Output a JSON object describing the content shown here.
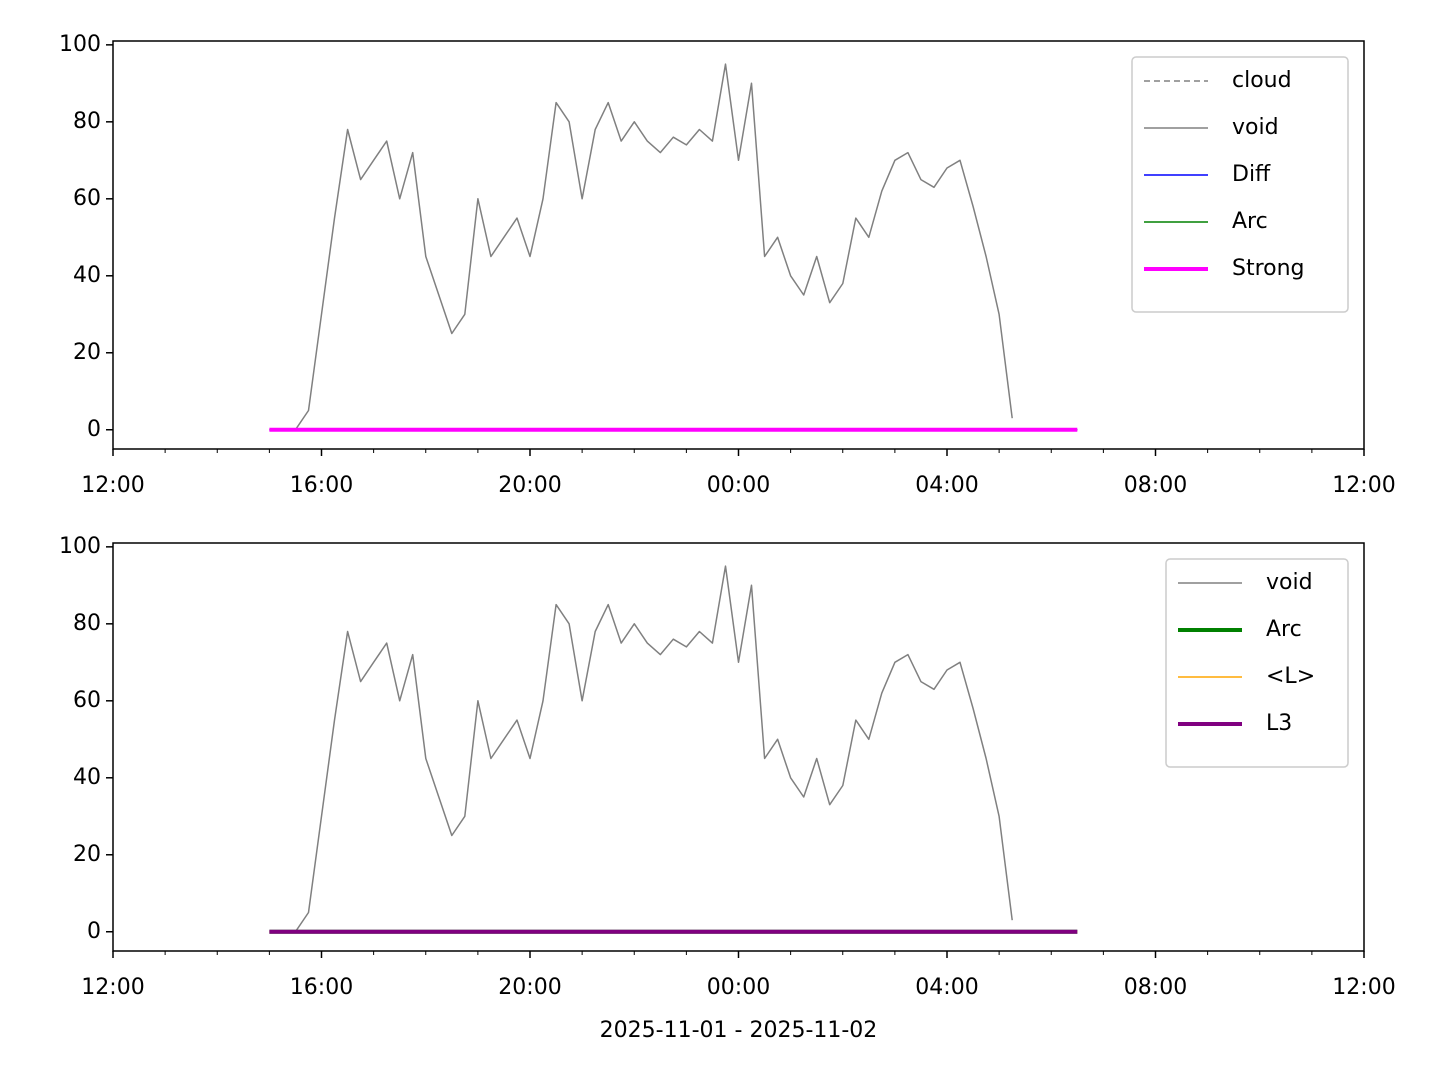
{
  "chart_data": [
    {
      "type": "line",
      "legend": "upper right",
      "x": [
        "15:00",
        "15:15",
        "15:30",
        "15:45",
        "16:00",
        "16:15",
        "16:30",
        "16:45",
        "17:00",
        "17:15",
        "17:30",
        "17:45",
        "18:00",
        "18:15",
        "18:30",
        "18:45",
        "19:00",
        "19:15",
        "19:30",
        "19:45",
        "20:00",
        "20:15",
        "20:30",
        "20:45",
        "21:00",
        "21:15",
        "21:30",
        "21:45",
        "22:00",
        "22:15",
        "22:30",
        "22:45",
        "23:00",
        "23:15",
        "23:30",
        "23:45",
        "00:00",
        "00:15",
        "00:30",
        "00:45",
        "01:00",
        "01:15",
        "01:30",
        "01:45",
        "02:00",
        "02:15",
        "02:30",
        "02:45",
        "03:00",
        "03:15",
        "03:30",
        "03:45",
        "04:00",
        "04:15",
        "04:30",
        "04:45",
        "05:00",
        "05:15",
        "05:30",
        "05:45",
        "06:00",
        "06:15",
        "06:30"
      ],
      "xlim": [
        "12:00",
        "12:00"
      ],
      "xticks": [
        "12:00",
        "16:00",
        "20:00",
        "00:00",
        "04:00",
        "08:00",
        "12:00"
      ],
      "ylim": [
        -5,
        101
      ],
      "yticks": [
        0,
        20,
        40,
        60,
        80,
        100
      ],
      "series": [
        {
          "name": "cloud",
          "color": "#808080",
          "dashed": true,
          "width": 1.5,
          "values": [
            null,
            null,
            null,
            null,
            null,
            null,
            null,
            null,
            null,
            null,
            null,
            null,
            null,
            null,
            null,
            null,
            null,
            null,
            null,
            null,
            null,
            null,
            null,
            null,
            null,
            null,
            null,
            null,
            null,
            null,
            null,
            null,
            null,
            null,
            null,
            null,
            null,
            null,
            null,
            null,
            null,
            null,
            null,
            null,
            null,
            null,
            null,
            null,
            null,
            null,
            null,
            null,
            null,
            null,
            null,
            null,
            null,
            null,
            null,
            null,
            null,
            null,
            null
          ]
        },
        {
          "name": "void",
          "color": "#808080",
          "width": 1.5,
          "values": [
            null,
            null,
            0,
            5,
            30,
            55,
            78,
            65,
            70,
            75,
            60,
            72,
            45,
            35,
            25,
            30,
            60,
            45,
            50,
            55,
            45,
            60,
            85,
            80,
            60,
            78,
            85,
            75,
            80,
            75,
            72,
            76,
            74,
            78,
            75,
            95,
            70,
            90,
            45,
            50,
            40,
            35,
            45,
            33,
            38,
            55,
            50,
            62,
            70,
            72,
            65,
            63,
            68,
            70,
            58,
            45,
            30,
            3,
            null,
            null,
            null,
            null,
            null
          ]
        },
        {
          "name": "Diff",
          "color": "#0000ff",
          "width": 1.5,
          "values": [
            0,
            0,
            0,
            0,
            0,
            0,
            0,
            0,
            0,
            0,
            0,
            0,
            0,
            0,
            0,
            0,
            0,
            0,
            0,
            0,
            0,
            0,
            0,
            0,
            0,
            0,
            0,
            0,
            0,
            0,
            0,
            0,
            0,
            0,
            0,
            0,
            0,
            0,
            0,
            0,
            0,
            0,
            0,
            0,
            0,
            0,
            0,
            0,
            0,
            0,
            0,
            0,
            0,
            0,
            0,
            0,
            0,
            0,
            0,
            0,
            0,
            0,
            0
          ]
        },
        {
          "name": "Arc",
          "color": "#008000",
          "width": 1.5,
          "values": [
            0,
            0,
            0,
            0,
            0,
            0,
            0,
            0,
            0,
            0,
            0,
            0,
            0,
            0,
            0,
            0,
            0,
            0,
            0,
            0,
            0,
            0,
            0,
            0,
            0,
            0,
            0,
            0,
            0,
            0,
            0,
            0,
            0,
            0,
            0,
            0,
            0,
            0,
            0,
            0,
            0,
            0,
            0,
            0,
            0,
            0,
            0,
            0,
            0,
            0,
            0,
            0,
            0,
            0,
            0,
            0,
            0,
            0,
            0,
            0,
            0,
            0,
            0
          ]
        },
        {
          "name": "Strong",
          "color": "#ff00ff",
          "width": 4,
          "values": [
            0,
            0,
            0,
            0,
            0,
            0,
            0,
            0,
            0,
            0,
            0,
            0,
            0,
            0,
            0,
            0,
            0,
            0,
            0,
            0,
            0,
            0,
            0,
            0,
            0,
            0,
            0,
            0,
            0,
            0,
            0,
            0,
            0,
            0,
            0,
            0,
            0,
            0,
            0,
            0,
            0,
            0,
            0,
            0,
            0,
            0,
            0,
            0,
            0,
            0,
            0,
            0,
            0,
            0,
            0,
            0,
            0,
            0,
            0,
            0,
            0,
            0,
            0
          ]
        }
      ]
    },
    {
      "type": "line",
      "legend": "upper right",
      "xlabel": "2025-11-01 - 2025-11-02",
      "x": [
        "15:00",
        "15:15",
        "15:30",
        "15:45",
        "16:00",
        "16:15",
        "16:30",
        "16:45",
        "17:00",
        "17:15",
        "17:30",
        "17:45",
        "18:00",
        "18:15",
        "18:30",
        "18:45",
        "19:00",
        "19:15",
        "19:30",
        "19:45",
        "20:00",
        "20:15",
        "20:30",
        "20:45",
        "21:00",
        "21:15",
        "21:30",
        "21:45",
        "22:00",
        "22:15",
        "22:30",
        "22:45",
        "23:00",
        "23:15",
        "23:30",
        "23:45",
        "00:00",
        "00:15",
        "00:30",
        "00:45",
        "01:00",
        "01:15",
        "01:30",
        "01:45",
        "02:00",
        "02:15",
        "02:30",
        "02:45",
        "03:00",
        "03:15",
        "03:30",
        "03:45",
        "04:00",
        "04:15",
        "04:30",
        "04:45",
        "05:00",
        "05:15",
        "05:30",
        "05:45",
        "06:00",
        "06:15",
        "06:30"
      ],
      "xlim": [
        "12:00",
        "12:00"
      ],
      "xticks": [
        "12:00",
        "16:00",
        "20:00",
        "00:00",
        "04:00",
        "08:00",
        "12:00"
      ],
      "ylim": [
        -5,
        101
      ],
      "yticks": [
        0,
        20,
        40,
        60,
        80,
        100
      ],
      "series": [
        {
          "name": "void",
          "color": "#808080",
          "width": 1.5,
          "values": [
            null,
            null,
            0,
            5,
            30,
            55,
            78,
            65,
            70,
            75,
            60,
            72,
            45,
            35,
            25,
            30,
            60,
            45,
            50,
            55,
            45,
            60,
            85,
            80,
            60,
            78,
            85,
            75,
            80,
            75,
            72,
            76,
            74,
            78,
            75,
            95,
            70,
            90,
            45,
            50,
            40,
            35,
            45,
            33,
            38,
            55,
            50,
            62,
            70,
            72,
            65,
            63,
            68,
            70,
            58,
            45,
            30,
            3,
            null,
            null,
            null,
            null,
            null
          ]
        },
        {
          "name": "Arc",
          "color": "#008000",
          "width": 4,
          "values": [
            0,
            0,
            0,
            0,
            0,
            0,
            0,
            0,
            0,
            0,
            0,
            0,
            0,
            0,
            0,
            0,
            0,
            0,
            0,
            0,
            0,
            0,
            0,
            0,
            0,
            0,
            0,
            0,
            0,
            0,
            0,
            0,
            0,
            0,
            0,
            0,
            0,
            0,
            0,
            0,
            0,
            0,
            0,
            0,
            0,
            0,
            0,
            0,
            0,
            0,
            0,
            0,
            0,
            0,
            0,
            0,
            0,
            0,
            0,
            0,
            0,
            0,
            0
          ]
        },
        {
          "name": "<L>",
          "color": "#ffa500",
          "width": 1.5,
          "values": [
            0,
            0,
            0,
            0,
            0,
            0,
            0,
            0,
            0,
            0,
            0,
            0,
            0,
            0,
            0,
            0,
            0,
            0,
            0,
            0,
            0,
            0,
            0,
            0,
            0,
            0,
            0,
            0,
            0,
            0,
            0,
            0,
            0,
            0,
            0,
            0,
            0,
            0,
            0,
            0,
            0,
            0,
            0,
            0,
            0,
            0,
            0,
            0,
            0,
            0,
            0,
            0,
            0,
            0,
            0,
            0,
            0,
            0,
            0,
            0,
            0,
            0,
            0
          ]
        },
        {
          "name": "L3",
          "color": "#800080",
          "width": 4,
          "values": [
            0,
            0,
            0,
            0,
            0,
            0,
            0,
            0,
            0,
            0,
            0,
            0,
            0,
            0,
            0,
            0,
            0,
            0,
            0,
            0,
            0,
            0,
            0,
            0,
            0,
            0,
            0,
            0,
            0,
            0,
            0,
            0,
            0,
            0,
            0,
            0,
            0,
            0,
            0,
            0,
            0,
            0,
            0,
            0,
            0,
            0,
            0,
            0,
            0,
            0,
            0,
            0,
            0,
            0,
            0,
            0,
            0,
            0,
            0,
            0,
            0,
            0,
            0
          ]
        }
      ]
    }
  ]
}
